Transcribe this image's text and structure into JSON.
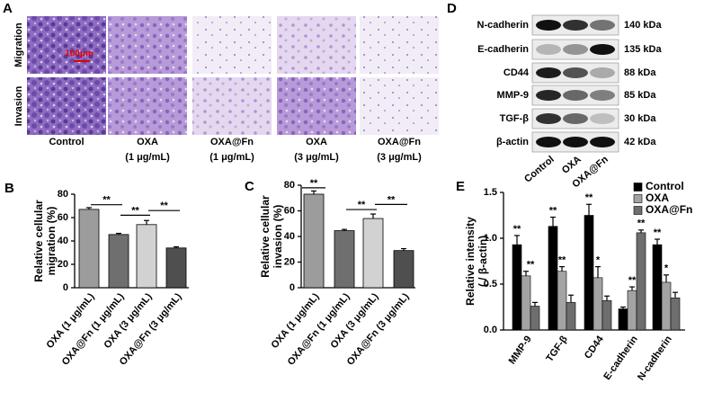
{
  "panel_a": {
    "label": "A",
    "rows": [
      "Migration",
      "Invasion"
    ],
    "columns": [
      [
        "Control"
      ],
      [
        "OXA",
        "(1 μg/mL)"
      ],
      [
        "OXA@Fn",
        "(1 μg/mL)"
      ],
      [
        "OXA",
        "(3 μg/mL)"
      ],
      [
        "OXA@Fn",
        "(3 μg/mL)"
      ]
    ],
    "scale_bar": "100μm"
  },
  "panel_d": {
    "label": "D",
    "proteins": [
      "N-cadherin",
      "E-cadherin",
      "CD44",
      "MMP-9",
      "TGF-β",
      "β-actin"
    ],
    "sizes": [
      "140 kDa",
      "135 kDa",
      "88 kDa",
      "85 kDa",
      "30 kDa",
      "42 kDa"
    ],
    "lanes": [
      "Control",
      "OXA",
      "OXA@Fn"
    ]
  },
  "chart_data": [
    {
      "panel": "B",
      "type": "bar",
      "ylabel": [
        "Relative cellular",
        "migration (%)"
      ],
      "categories": [
        "OXA (1 μg/mL)",
        "OXA@Fn (1 μg/mL)",
        "OXA (3 μg/mL)",
        "OXA@Fn (3 μg/mL)"
      ],
      "values": [
        67,
        45.5,
        54,
        34
      ],
      "errors": [
        1.5,
        1,
        3.5,
        1
      ],
      "colors": [
        "#9c9c9c",
        "#6f6f6f",
        "#d2d2d2",
        "#4f4f4f"
      ],
      "ylim": [
        0,
        80
      ],
      "yticks": [
        0,
        20,
        40,
        60,
        80
      ],
      "annotations": [
        "**",
        "**",
        "**"
      ]
    },
    {
      "panel": "C",
      "type": "bar",
      "ylabel": [
        "Relative cellular",
        "invasion (%)"
      ],
      "categories": [
        "OXA (1 μg/mL)",
        "OXA@Fn (1 μg/mL)",
        "OXA (3 μg/mL)",
        "OXA@Fn (3 μg/mL)"
      ],
      "values": [
        73,
        44.5,
        54,
        29
      ],
      "errors": [
        2.5,
        1,
        3.5,
        1.5
      ],
      "colors": [
        "#9c9c9c",
        "#6f6f6f",
        "#d2d2d2",
        "#4f4f4f"
      ],
      "ylim": [
        0,
        80
      ],
      "yticks": [
        0,
        20,
        40,
        60,
        80
      ],
      "annotations": [
        "**",
        "**",
        "**"
      ]
    },
    {
      "panel": "E",
      "type": "grouped_bar",
      "ylabel": [
        "Relative intensity",
        "( / β-actin)"
      ],
      "categories": [
        "MMP-9",
        "TGF-β",
        "CD44",
        "E-cadherin",
        "N-cadherin"
      ],
      "series": [
        {
          "name": "Control",
          "color": "#000000",
          "values": [
            0.93,
            1.13,
            1.25,
            0.23,
            0.93
          ],
          "errors": [
            0.1,
            0.1,
            0.12,
            0.02,
            0.06
          ]
        },
        {
          "name": "OXA",
          "color": "#a3a3a3",
          "values": [
            0.59,
            0.64,
            0.57,
            0.43,
            0.52
          ],
          "errors": [
            0.05,
            0.05,
            0.12,
            0.04,
            0.08
          ]
        },
        {
          "name": "OXA@Fn",
          "color": "#6e6e6e",
          "values": [
            0.26,
            0.3,
            0.32,
            1.06,
            0.35
          ],
          "errors": [
            0.04,
            0.08,
            0.05,
            0.03,
            0.06
          ]
        }
      ],
      "ylim": [
        0,
        1.5
      ],
      "yticks": [
        {
          "value": 0,
          "label": "0.0"
        },
        0.5,
        {
          "value": 1,
          "label": "1.0"
        },
        1.5
      ],
      "annotations": [
        "**",
        "**",
        "**",
        "**",
        "**",
        "*",
        "**",
        "**",
        "**",
        "*"
      ]
    }
  ]
}
